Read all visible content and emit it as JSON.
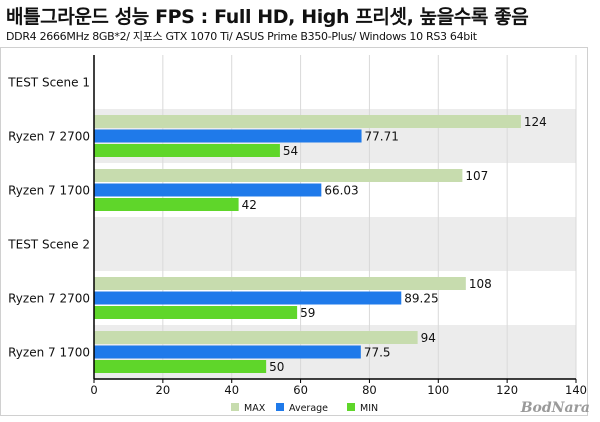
{
  "title": "배틀그라운드 성능 FPS : Full HD, High 프리셋, 높을수록 좋음",
  "subtitle": "DDR4 2666MHz 8GB*2/ 지포스 GTX 1070 Ti/ ASUS Prime B350-Plus/ Windows 10 RS3 64bit",
  "watermark": "BodNara",
  "colors": {
    "max": "#c7dcae",
    "average": "#1f7aea",
    "min": "#5fd62a",
    "band": "#ececec"
  },
  "chart_data": {
    "type": "bar",
    "orientation": "horizontal",
    "categories": [
      "TEST Scene 1",
      "Ryzen 7 2700",
      "Ryzen 7 1700",
      "TEST Scene 2",
      "Ryzen 7 2700",
      "Ryzen 7 1700"
    ],
    "series": [
      {
        "name": "MAX",
        "values": [
          null,
          124,
          107,
          null,
          108,
          94
        ],
        "labels": [
          "",
          "124",
          "107",
          "",
          "108",
          "94"
        ]
      },
      {
        "name": "Average",
        "values": [
          null,
          77.71,
          66.03,
          null,
          89.25,
          77.5
        ],
        "labels": [
          "",
          "77.71",
          "66.03",
          "",
          "89.25",
          "77.5"
        ]
      },
      {
        "name": "MIN",
        "values": [
          null,
          54,
          42,
          null,
          59,
          50
        ],
        "labels": [
          "",
          "54",
          "42",
          "",
          "59",
          "50"
        ]
      }
    ],
    "xlim": [
      0,
      140
    ],
    "xticks": [
      0,
      20,
      40,
      60,
      80,
      100,
      120,
      140
    ],
    "grid": true,
    "legend": "bottom"
  }
}
